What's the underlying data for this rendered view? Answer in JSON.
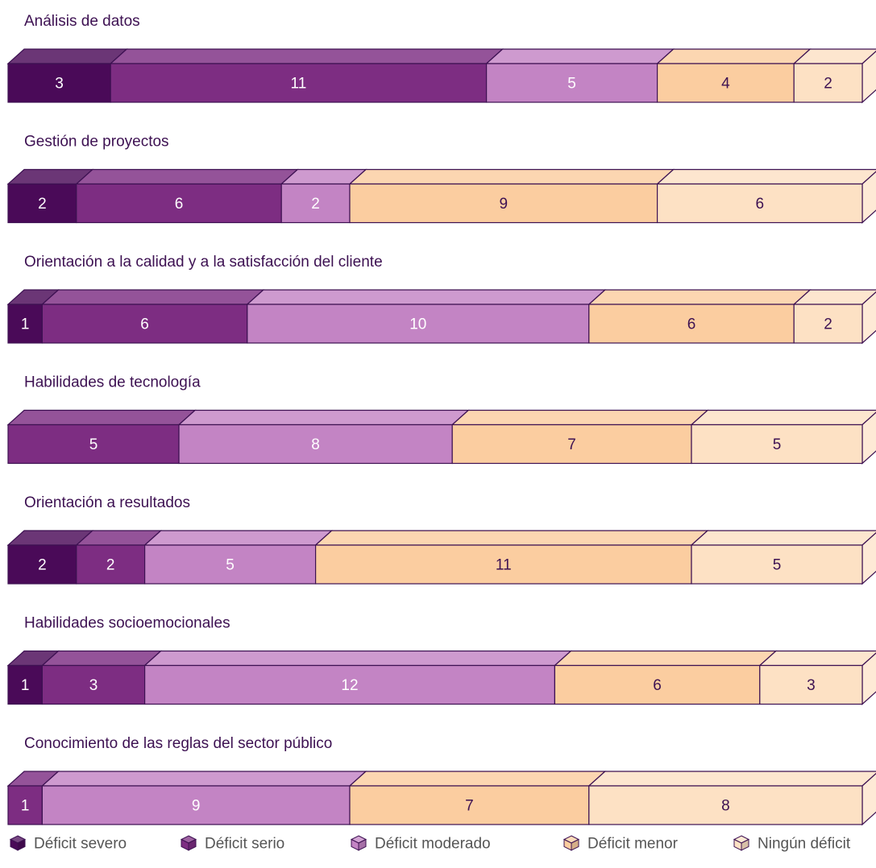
{
  "chart_data": {
    "type": "bar",
    "stacked": true,
    "orientation": "horizontal",
    "categories": [
      "Análisis de datos",
      "Gestión de proyectos",
      "Orientación a la calidad y a la satisfacción del cliente",
      "Habilidades de tecnología",
      "Orientación a resultados",
      "Habilidades socioemocionales",
      "Conocimiento de las reglas del sector público"
    ],
    "series": [
      {
        "name": "Déficit severo",
        "color": "#4a0a58",
        "label_color": "#ffffff",
        "values": [
          3,
          2,
          1,
          0,
          2,
          1,
          0
        ]
      },
      {
        "name": "Déficit serio",
        "color": "#7d2d82",
        "label_color": "#ffffff",
        "values": [
          11,
          6,
          6,
          5,
          2,
          3,
          1
        ]
      },
      {
        "name": "Déficit moderado",
        "color": "#c384c4",
        "label_color": "#ffffff",
        "values": [
          5,
          2,
          10,
          8,
          5,
          12,
          9
        ]
      },
      {
        "name": "Déficit menor",
        "color": "#fbcda0",
        "label_color": "#3d1152",
        "values": [
          4,
          9,
          6,
          7,
          11,
          6,
          7
        ]
      },
      {
        "name": "Ningún déficit",
        "color": "#fde1c4",
        "label_color": "#3d1152",
        "values": [
          2,
          6,
          2,
          5,
          5,
          3,
          8
        ]
      }
    ],
    "total_per_row": 25,
    "legend_position": "bottom",
    "grid": false
  }
}
